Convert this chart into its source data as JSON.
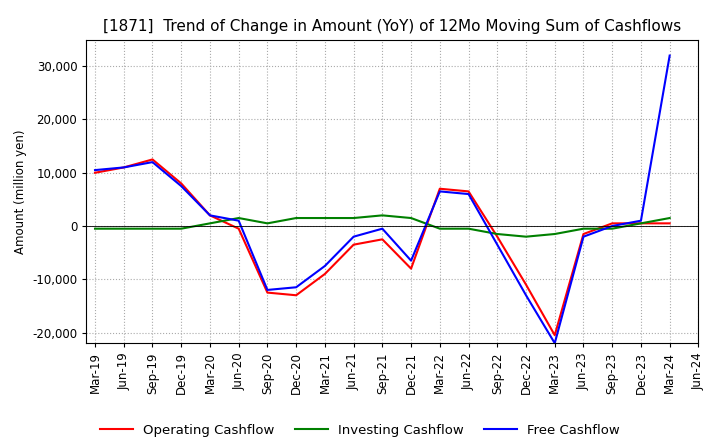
{
  "title": "[1871]  Trend of Change in Amount (YoY) of 12Mo Moving Sum of Cashflows",
  "ylabel": "Amount (million yen)",
  "ylim": [
    -22000,
    35000
  ],
  "yticks": [
    -20000,
    -10000,
    0,
    10000,
    20000,
    30000
  ],
  "x_labels": [
    "Mar-19",
    "Jun-19",
    "Sep-19",
    "Dec-19",
    "Mar-20",
    "Jun-20",
    "Sep-20",
    "Dec-20",
    "Mar-21",
    "Jun-21",
    "Sep-21",
    "Dec-21",
    "Mar-22",
    "Jun-22",
    "Sep-22",
    "Dec-22",
    "Mar-23",
    "Jun-23",
    "Sep-23",
    "Dec-23",
    "Mar-24",
    "Jun-24"
  ],
  "operating": [
    10000,
    11000,
    12500,
    8000,
    2000,
    -500,
    -12500,
    -13000,
    -9000,
    -3500,
    -2500,
    -8000,
    7000,
    6500,
    -2000,
    -11000,
    -20500,
    -1500,
    500,
    500,
    500,
    null
  ],
  "investing": [
    -500,
    -500,
    -500,
    -500,
    500,
    1500,
    500,
    1500,
    1500,
    1500,
    2000,
    1500,
    -500,
    -500,
    -1500,
    -2000,
    -1500,
    -500,
    -500,
    500,
    1500,
    null
  ],
  "free": [
    10500,
    11000,
    12000,
    7500,
    2000,
    1000,
    -12000,
    -11500,
    -7500,
    -2000,
    -500,
    -6500,
    6500,
    6000,
    -3500,
    -13000,
    -22000,
    -2000,
    0,
    1000,
    32000,
    null
  ],
  "operating_color": "#ff0000",
  "investing_color": "#008000",
  "free_color": "#0000ff",
  "background_color": "#ffffff",
  "grid_color": "#aaaaaa",
  "title_fontsize": 11,
  "axis_fontsize": 8.5,
  "legend_fontsize": 9.5
}
